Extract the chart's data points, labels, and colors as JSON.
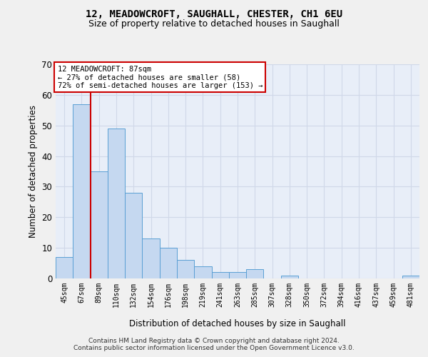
{
  "title1": "12, MEADOWCROFT, SAUGHALL, CHESTER, CH1 6EU",
  "title2": "Size of property relative to detached houses in Saughall",
  "xlabel": "Distribution of detached houses by size in Saughall",
  "ylabel": "Number of detached properties",
  "categories": [
    "45sqm",
    "67sqm",
    "89sqm",
    "110sqm",
    "132sqm",
    "154sqm",
    "176sqm",
    "198sqm",
    "219sqm",
    "241sqm",
    "263sqm",
    "285sqm",
    "307sqm",
    "328sqm",
    "350sqm",
    "372sqm",
    "394sqm",
    "416sqm",
    "437sqm",
    "459sqm",
    "481sqm"
  ],
  "values": [
    7,
    57,
    35,
    49,
    28,
    13,
    10,
    6,
    4,
    2,
    2,
    3,
    0,
    1,
    0,
    0,
    0,
    0,
    0,
    0,
    1
  ],
  "bar_color": "#c5d8f0",
  "bar_edge_color": "#5a9fd4",
  "vline_color": "#cc0000",
  "annotation_text": "12 MEADOWCROFT: 87sqm\n← 27% of detached houses are smaller (58)\n72% of semi-detached houses are larger (153) →",
  "annotation_box_color": "#ffffff",
  "annotation_box_edge": "#cc0000",
  "ylim": [
    0,
    70
  ],
  "yticks": [
    0,
    10,
    20,
    30,
    40,
    50,
    60,
    70
  ],
  "grid_color": "#d0d8e8",
  "bg_color": "#e8eef8",
  "fig_bg_color": "#f0f0f0",
  "footer1": "Contains HM Land Registry data © Crown copyright and database right 2024.",
  "footer2": "Contains public sector information licensed under the Open Government Licence v3.0."
}
